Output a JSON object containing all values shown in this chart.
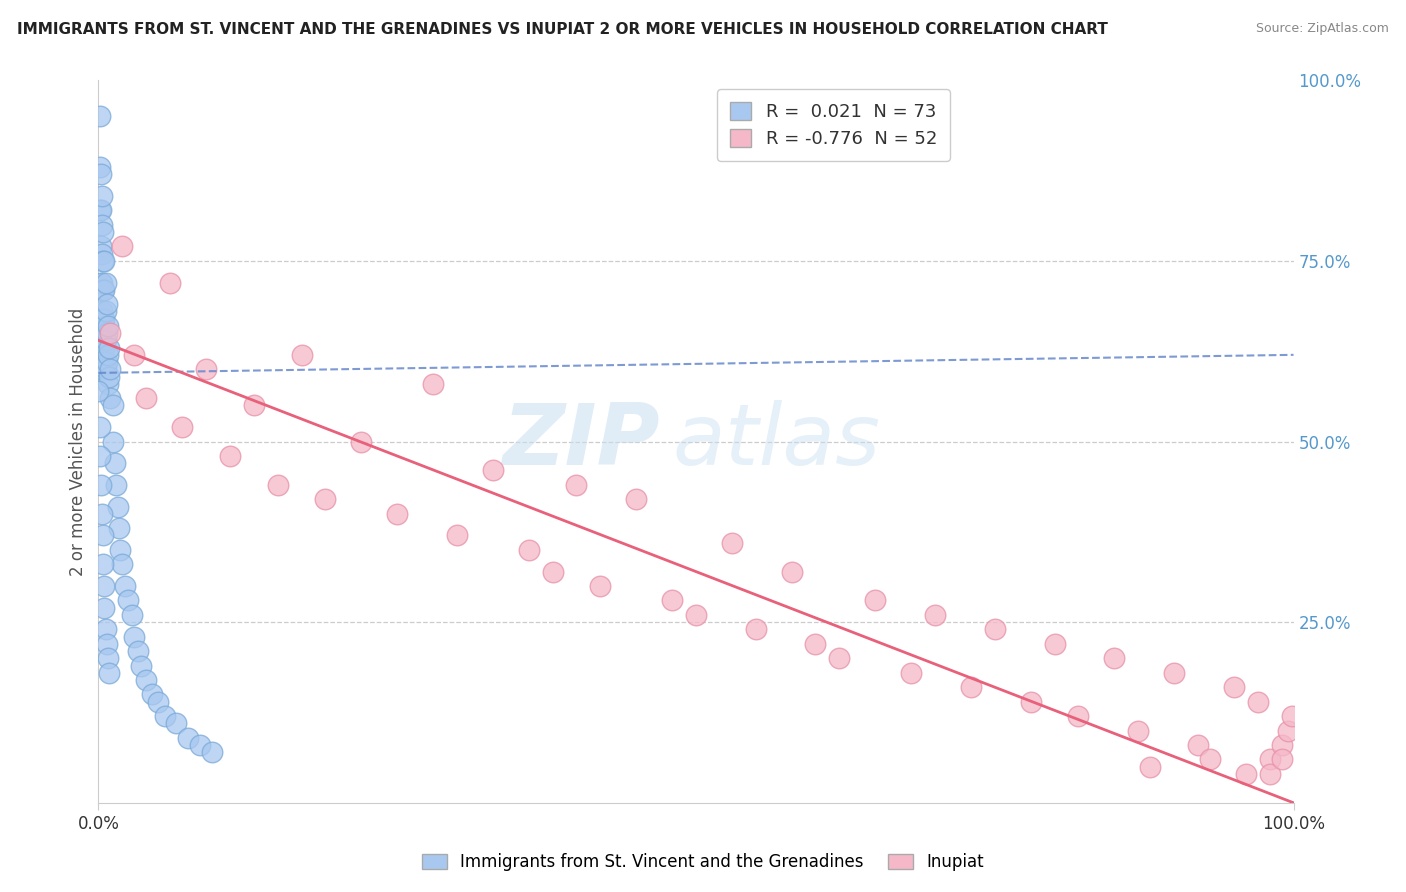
{
  "title": "IMMIGRANTS FROM ST. VINCENT AND THE GRENADINES VS INUPIAT 2 OR MORE VEHICLES IN HOUSEHOLD CORRELATION CHART",
  "source": "Source: ZipAtlas.com",
  "ylabel": "2 or more Vehicles in Household",
  "xlim": [
    0.0,
    1.0
  ],
  "ylim": [
    0.0,
    1.0
  ],
  "blue_R": 0.021,
  "blue_N": 73,
  "pink_R": -0.776,
  "pink_N": 52,
  "blue_color": "#a8c8f0",
  "pink_color": "#f5b8c8",
  "blue_edge_color": "#7aaad8",
  "pink_edge_color": "#e890a8",
  "blue_line_color": "#6688cc",
  "pink_line_color": "#e8607a",
  "watermark_zip": "ZIP",
  "watermark_atlas": "atlas",
  "legend_blue_label": "Immigrants from St. Vincent and the Grenadines",
  "legend_pink_label": "Inupiat",
  "blue_scatter_x": [
    0.001,
    0.001,
    0.001,
    0.002,
    0.002,
    0.002,
    0.002,
    0.002,
    0.003,
    0.003,
    0.003,
    0.003,
    0.003,
    0.003,
    0.003,
    0.004,
    0.004,
    0.004,
    0.004,
    0.004,
    0.005,
    0.005,
    0.005,
    0.005,
    0.006,
    0.006,
    0.006,
    0.006,
    0.007,
    0.007,
    0.007,
    0.008,
    0.008,
    0.008,
    0.009,
    0.009,
    0.01,
    0.01,
    0.012,
    0.012,
    0.014,
    0.015,
    0.016,
    0.017,
    0.018,
    0.02,
    0.022,
    0.025,
    0.028,
    0.03,
    0.033,
    0.036,
    0.04,
    0.045,
    0.05,
    0.056,
    0.065,
    0.075,
    0.085,
    0.095,
    0.0,
    0.001,
    0.001,
    0.002,
    0.003,
    0.004,
    0.004,
    0.005,
    0.005,
    0.006,
    0.007,
    0.008,
    0.009
  ],
  "blue_scatter_y": [
    0.95,
    0.88,
    0.82,
    0.87,
    0.82,
    0.77,
    0.72,
    0.67,
    0.84,
    0.8,
    0.76,
    0.72,
    0.68,
    0.64,
    0.6,
    0.79,
    0.75,
    0.71,
    0.67,
    0.63,
    0.75,
    0.71,
    0.67,
    0.63,
    0.72,
    0.68,
    0.64,
    0.6,
    0.69,
    0.65,
    0.61,
    0.66,
    0.62,
    0.58,
    0.63,
    0.59,
    0.6,
    0.56,
    0.55,
    0.5,
    0.47,
    0.44,
    0.41,
    0.38,
    0.35,
    0.33,
    0.3,
    0.28,
    0.26,
    0.23,
    0.21,
    0.19,
    0.17,
    0.15,
    0.14,
    0.12,
    0.11,
    0.09,
    0.08,
    0.07,
    0.57,
    0.52,
    0.48,
    0.44,
    0.4,
    0.37,
    0.33,
    0.3,
    0.27,
    0.24,
    0.22,
    0.2,
    0.18
  ],
  "pink_scatter_x": [
    0.01,
    0.02,
    0.03,
    0.04,
    0.06,
    0.07,
    0.09,
    0.11,
    0.13,
    0.15,
    0.17,
    0.19,
    0.22,
    0.25,
    0.28,
    0.3,
    0.33,
    0.36,
    0.38,
    0.4,
    0.42,
    0.45,
    0.48,
    0.5,
    0.53,
    0.55,
    0.58,
    0.6,
    0.62,
    0.65,
    0.68,
    0.7,
    0.73,
    0.75,
    0.78,
    0.8,
    0.82,
    0.85,
    0.87,
    0.88,
    0.9,
    0.92,
    0.93,
    0.95,
    0.96,
    0.97,
    0.98,
    0.98,
    0.99,
    0.99,
    0.995,
    0.999
  ],
  "pink_scatter_y": [
    0.65,
    0.77,
    0.62,
    0.56,
    0.72,
    0.52,
    0.6,
    0.48,
    0.55,
    0.44,
    0.62,
    0.42,
    0.5,
    0.4,
    0.58,
    0.37,
    0.46,
    0.35,
    0.32,
    0.44,
    0.3,
    0.42,
    0.28,
    0.26,
    0.36,
    0.24,
    0.32,
    0.22,
    0.2,
    0.28,
    0.18,
    0.26,
    0.16,
    0.24,
    0.14,
    0.22,
    0.12,
    0.2,
    0.1,
    0.05,
    0.18,
    0.08,
    0.06,
    0.16,
    0.04,
    0.14,
    0.06,
    0.04,
    0.08,
    0.06,
    0.1,
    0.12
  ],
  "blue_trend_x0": 0.0,
  "blue_trend_y0": 0.595,
  "blue_trend_x1": 1.0,
  "blue_trend_y1": 0.62,
  "pink_trend_x0": 0.0,
  "pink_trend_y0": 0.64,
  "pink_trend_x1": 1.0,
  "pink_trend_y1": 0.0
}
